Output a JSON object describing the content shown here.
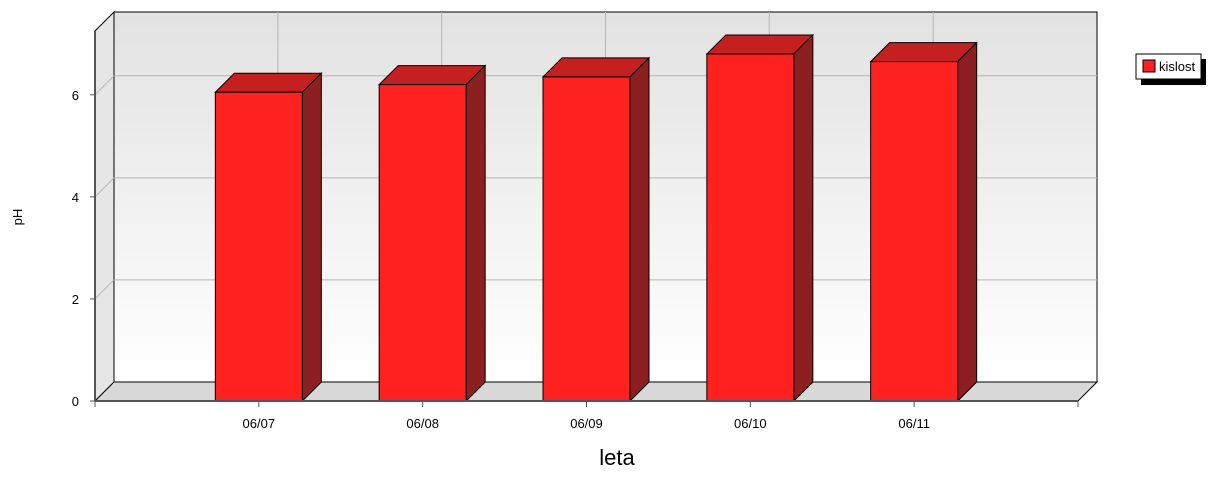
{
  "chart_data": {
    "type": "bar",
    "categories": [
      "06/07",
      "06/08",
      "06/09",
      "06/10",
      "06/11"
    ],
    "series": [
      {
        "name": "kislost",
        "values": [
          6.05,
          6.2,
          6.35,
          6.8,
          6.65
        ]
      }
    ],
    "xlabel": "leta",
    "ylabel": "pH",
    "ylim": [
      0,
      7.25
    ],
    "yticks": [
      0,
      2,
      4,
      6
    ],
    "grid": true,
    "legend": "top-right",
    "colors": {
      "bar_front": "#ff2020",
      "bar_top": "#c42020",
      "bar_side": "#8c2020",
      "bar_stroke": "#000000",
      "grid": "#b4b4b4",
      "floor": "#d8d8d8"
    }
  }
}
